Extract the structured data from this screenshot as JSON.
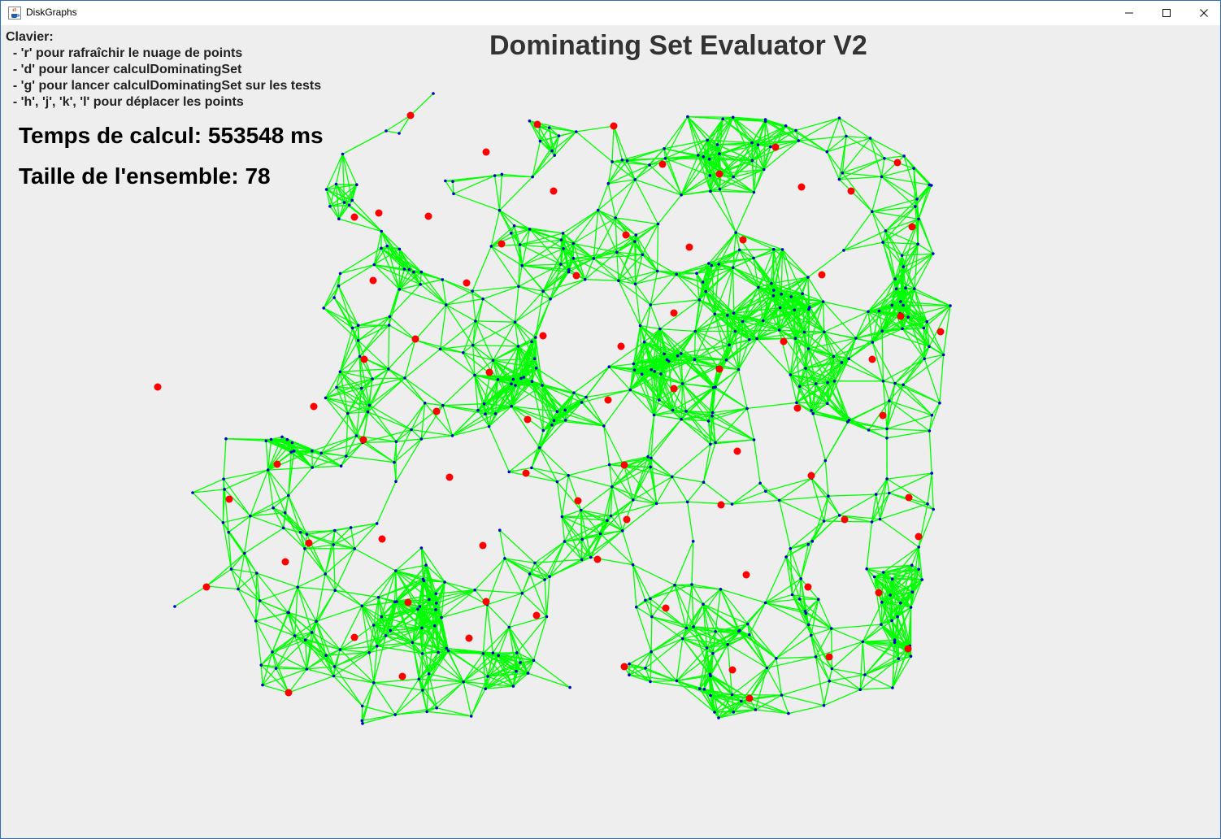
{
  "window": {
    "title": "DiskGraphs",
    "icon": "java-cup-icon"
  },
  "controls": {
    "minimize": "minimize-icon",
    "maximize": "maximize-icon",
    "close": "close-icon"
  },
  "help": {
    "heading": "Clavier:",
    "lines": [
      "  - 'r' pour rafraîchir le nuage de points",
      "  - 'd' pour lancer calculDominatingSet",
      "  - 'g' pour lancer calculDominatingSet sur les tests",
      "  - 'h', 'j', 'k', 'l' pour déplacer les points"
    ]
  },
  "app_title": "Dominating Set Evaluator V2",
  "stats": {
    "time": "Temps de calcul: 553548 ms",
    "size": "Taille de l'ensemble: 78"
  },
  "graph": {
    "edge_color": "#00ff00",
    "node_color": "#0000cc",
    "dominating_color": "#ff0000"
  }
}
